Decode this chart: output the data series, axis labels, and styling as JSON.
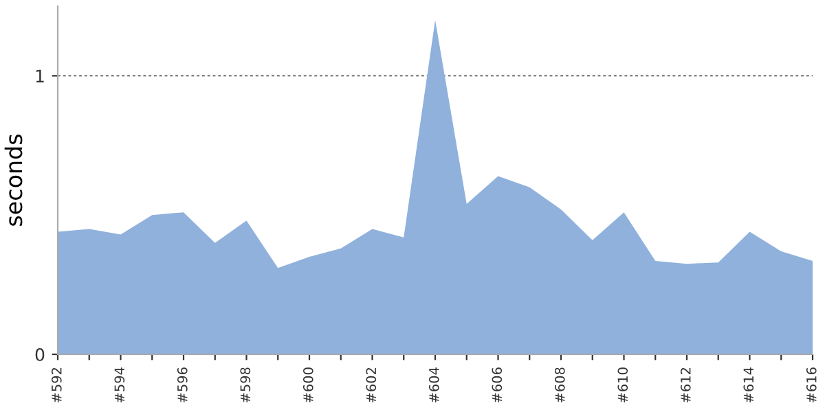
{
  "chart_data": {
    "type": "area",
    "ylabel": "seconds",
    "categories": [
      "#592",
      null,
      "#594",
      null,
      "#596",
      null,
      "#598",
      null,
      "#600",
      null,
      "#602",
      null,
      "#604",
      null,
      "#606",
      null,
      "#608",
      null,
      "#610",
      null,
      "#612",
      null,
      "#614",
      null,
      "#616"
    ],
    "series": [
      {
        "color": "#8fb1dc",
        "values": [
          0.44,
          0.45,
          0.43,
          0.5,
          0.51,
          0.4,
          0.48,
          0.31,
          0.35,
          0.38,
          0.45,
          0.42,
          1.2,
          0.54,
          0.64,
          0.6,
          0.52,
          0.41,
          0.51,
          0.335,
          0.325,
          0.33,
          0.44,
          0.37,
          0.335
        ]
      }
    ],
    "ylim": [
      0,
      1.25
    ],
    "yticks": [
      0,
      1
    ],
    "grid": "y"
  }
}
